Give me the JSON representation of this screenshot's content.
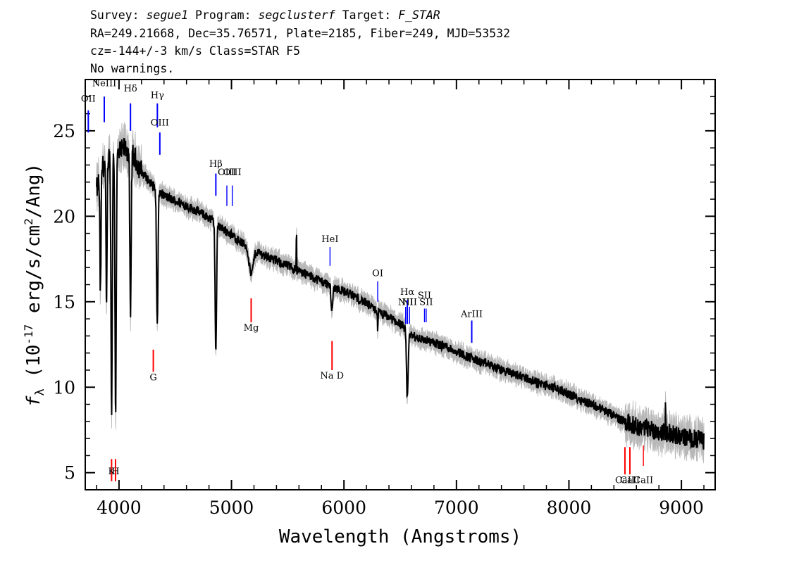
{
  "header": {
    "line1": "Survey: segue1 Program: segclusterf Target: F_STAR",
    "line2": "RA=249.21668, Dec=35.76571, Plate=2185, Fiber=249, MJD=53532",
    "line3": "cz=-144+/-3 km/s Class=STAR F5",
    "line4": "No warnings."
  },
  "chart_data": {
    "type": "line",
    "xlabel": "Wavelength (Angstroms)",
    "ylabel": "f_λ (10^-17 erg/s/cm²/Ang)",
    "xlim": [
      3700,
      9300
    ],
    "ylim": [
      4,
      28
    ],
    "xticks": [
      4000,
      5000,
      6000,
      7000,
      8000,
      9000
    ],
    "yticks": [
      5,
      10,
      15,
      20,
      25
    ],
    "grid": false,
    "colors": {
      "flux": "#000000",
      "error": "#b8b8b8",
      "emission": "#0000ff",
      "absorption": "#ff0000"
    },
    "continuum": {
      "x": [
        3800,
        3850,
        3900,
        4000,
        4050,
        4100,
        4150,
        4200,
        4300,
        4400,
        4500,
        4600,
        4700,
        4800,
        4900,
        5000,
        5100,
        5200,
        5300,
        5400,
        5500,
        5600,
        5700,
        5800,
        5900,
        6000,
        6100,
        6200,
        6300,
        6400,
        6500,
        6600,
        6700,
        6800,
        6900,
        7000,
        7100,
        7200,
        7300,
        7400,
        7500,
        7600,
        7700,
        7800,
        7900,
        8000,
        8100,
        8200,
        8300,
        8400,
        8500,
        8600,
        8700,
        8800,
        8900,
        9000,
        9100,
        9200
      ],
      "y": [
        21.5,
        22.8,
        23.5,
        23.6,
        24.0,
        23.7,
        23.3,
        22.6,
        21.8,
        21.2,
        20.9,
        20.6,
        20.3,
        19.9,
        19.4,
        18.9,
        18.4,
        18.0,
        17.7,
        17.4,
        17.1,
        16.8,
        16.5,
        16.2,
        15.9,
        15.6,
        15.3,
        14.9,
        14.4,
        14.1,
        13.7,
        13.0,
        12.8,
        12.6,
        12.4,
        12.1,
        11.8,
        11.5,
        11.3,
        11.0,
        10.8,
        10.6,
        10.3,
        10.1,
        9.9,
        9.6,
        9.3,
        9.0,
        8.7,
        8.3,
        8.0,
        7.7,
        7.6,
        7.4,
        7.3,
        7.1,
        7.0,
        6.9
      ]
    },
    "absorption_features": [
      {
        "x": 3835,
        "depth": 7.0,
        "width": 7
      },
      {
        "x": 3889,
        "depth": 9.0,
        "width": 7
      },
      {
        "x": 3934,
        "depth": 15.0,
        "width": 8
      },
      {
        "x": 3970,
        "depth": 15.0,
        "width": 8
      },
      {
        "x": 4102,
        "depth": 10.0,
        "width": 8
      },
      {
        "x": 4340,
        "depth": 8.0,
        "width": 9
      },
      {
        "x": 4861,
        "depth": 7.5,
        "width": 9
      },
      {
        "x": 5175,
        "depth": 1.5,
        "width": 25
      },
      {
        "x": 5893,
        "depth": 1.5,
        "width": 10
      },
      {
        "x": 6563,
        "depth": 4.0,
        "width": 10
      }
    ],
    "spikes": [
      {
        "x": 5577,
        "height": 2.0
      },
      {
        "x": 6300,
        "height": -1.0
      },
      {
        "x": 8860,
        "height": 1.5
      }
    ],
    "emission_lines": [
      {
        "label": "OII",
        "x": 3727,
        "y1": 24.9,
        "y2": 26.2,
        "label_y": 26.7
      },
      {
        "label": "NeIII",
        "x": 3869,
        "y1": 25.5,
        "y2": 27.0,
        "label_y": 27.6
      },
      {
        "label": "Hδ",
        "x": 4102,
        "y1": 25.0,
        "y2": 26.6,
        "label_y": 27.3
      },
      {
        "label": "Hγ",
        "x": 4341,
        "y1": 25.2,
        "y2": 26.6,
        "label_y": 26.9
      },
      {
        "label": "OIII",
        "x": 4363,
        "y1": 23.6,
        "y2": 24.9,
        "label_y": 25.3
      },
      {
        "label": "Hβ",
        "x": 4861,
        "y1": 21.2,
        "y2": 22.5,
        "label_y": 22.9
      },
      {
        "label": "OIII",
        "x": 4959,
        "y1": 20.6,
        "y2": 21.8,
        "label_y": 22.4
      },
      {
        "label": "OIII",
        "x": 5007,
        "y1": 20.6,
        "y2": 21.8,
        "label_y": 22.4
      },
      {
        "label": "HeI",
        "x": 5876,
        "y1": 17.1,
        "y2": 18.2,
        "label_y": 18.5
      },
      {
        "label": "OI",
        "x": 6300,
        "y1": 15.0,
        "y2": 16.2,
        "label_y": 16.5
      },
      {
        "label": "NII",
        "x": 6548,
        "y1": 13.7,
        "y2": 14.7,
        "label_y": 14.8
      },
      {
        "label": "Hα",
        "x": 6563,
        "y1": 13.7,
        "y2": 15.1,
        "label_y": 15.4
      },
      {
        "label": "NII",
        "x": 6583,
        "y1": 13.7,
        "y2": 14.7,
        "label_y": 14.8
      },
      {
        "label": "SII",
        "x": 6716,
        "y1": 13.8,
        "y2": 14.6,
        "label_y": 15.2
      },
      {
        "label": "SII",
        "x": 6731,
        "y1": 13.8,
        "y2": 14.6,
        "label_y": 14.8
      },
      {
        "label": "ArIII",
        "x": 7136,
        "y1": 12.6,
        "y2": 13.9,
        "label_y": 14.1
      }
    ],
    "absorption_lines": [
      {
        "label": "K",
        "x": 3934,
        "y1": 4.5,
        "y2": 5.8,
        "label_y": 4.9
      },
      {
        "label": "H",
        "x": 3969,
        "y1": 4.5,
        "y2": 5.8,
        "label_y": 4.9
      },
      {
        "label": "G",
        "x": 4305,
        "y1": 10.9,
        "y2": 12.2,
        "label_y": 10.4
      },
      {
        "label": "Mg",
        "x": 5175,
        "y1": 13.8,
        "y2": 15.2,
        "label_y": 13.3
      },
      {
        "label": "Na D",
        "x": 5894,
        "y1": 11.0,
        "y2": 12.7,
        "label_y": 10.5
      },
      {
        "label": "CaII",
        "x": 8498,
        "y1": 4.9,
        "y2": 6.5,
        "label_y": 4.4
      },
      {
        "label": "CaII",
        "x": 8542,
        "y1": 4.9,
        "y2": 6.5,
        "label_y": 4.4
      },
      {
        "label": "CaII",
        "x": 8662,
        "y1": 5.4,
        "y2": 6.6,
        "label_y": 4.4
      }
    ]
  }
}
